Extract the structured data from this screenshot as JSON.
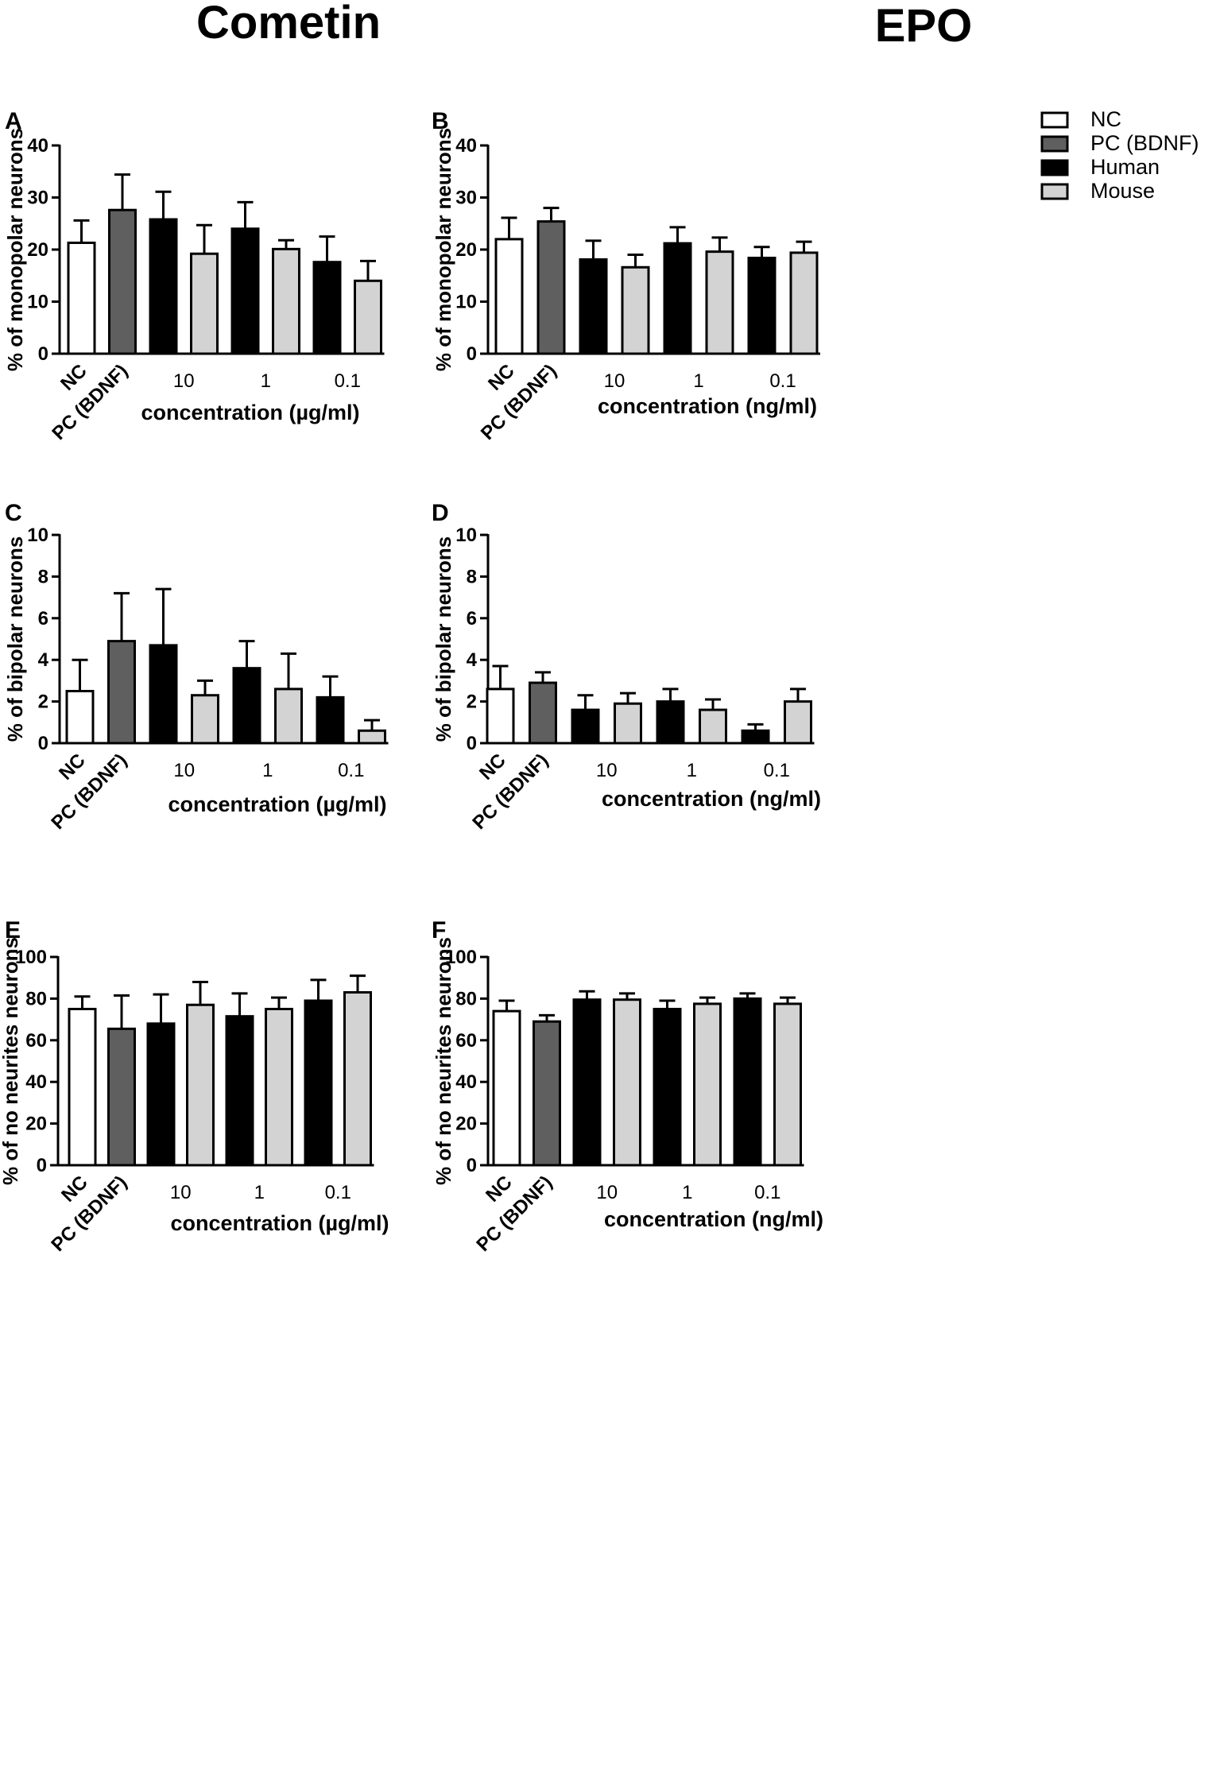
{
  "titles": {
    "left": "Cometin",
    "right": "EPO"
  },
  "legend": [
    {
      "label": "NC",
      "color": "#ffffff"
    },
    {
      "label": "PC (BDNF)",
      "color": "#5f5f5f"
    },
    {
      "label": "Human",
      "color": "#000000"
    },
    {
      "label": "Mouse",
      "color": "#d3d3d3"
    }
  ],
  "chart_data": [
    {
      "panel": "A",
      "type": "bar",
      "ylabel": "% of monopolar neurons",
      "xlabel": "concentration (µg/ml)",
      "ylim": [
        0,
        40
      ],
      "yticks": [
        0,
        10,
        20,
        30,
        40
      ],
      "control_labels": [
        "NC",
        "PC (BDNF)"
      ],
      "group_labels": [
        "10",
        "1",
        "0.1"
      ],
      "bars": [
        {
          "series": "NC",
          "value": 21.3,
          "error": 4.3
        },
        {
          "series": "PC (BDNF)",
          "value": 27.6,
          "error": 6.8
        },
        {
          "series": "Human",
          "group": "10",
          "value": 25.8,
          "error": 5.3
        },
        {
          "series": "Mouse",
          "group": "10",
          "value": 19.2,
          "error": 5.5
        },
        {
          "series": "Human",
          "group": "1",
          "value": 24.0,
          "error": 5.1
        },
        {
          "series": "Mouse",
          "group": "1",
          "value": 20.1,
          "error": 1.7
        },
        {
          "series": "Human",
          "group": "0.1",
          "value": 17.6,
          "error": 4.9
        },
        {
          "series": "Mouse",
          "group": "0.1",
          "value": 14.0,
          "error": 3.8
        }
      ]
    },
    {
      "panel": "B",
      "type": "bar",
      "ylabel": "% of monopolar neurons",
      "xlabel": "concentration (ng/ml)",
      "ylim": [
        0,
        40
      ],
      "yticks": [
        0,
        10,
        20,
        30,
        40
      ],
      "control_labels": [
        "NC",
        "PC (BDNF)"
      ],
      "group_labels": [
        "10",
        "1",
        "0.1"
      ],
      "bars": [
        {
          "series": "NC",
          "value": 22.0,
          "error": 4.1
        },
        {
          "series": "PC (BDNF)",
          "value": 25.4,
          "error": 2.6
        },
        {
          "series": "Human",
          "group": "10",
          "value": 18.1,
          "error": 3.6
        },
        {
          "series": "Mouse",
          "group": "10",
          "value": 16.6,
          "error": 2.4
        },
        {
          "series": "Human",
          "group": "1",
          "value": 21.2,
          "error": 3.1
        },
        {
          "series": "Mouse",
          "group": "1",
          "value": 19.6,
          "error": 2.7
        },
        {
          "series": "Human",
          "group": "0.1",
          "value": 18.4,
          "error": 2.1
        },
        {
          "series": "Mouse",
          "group": "0.1",
          "value": 19.4,
          "error": 2.1
        }
      ]
    },
    {
      "panel": "C",
      "type": "bar",
      "ylabel": "% of bipolar neurons",
      "xlabel": "concentration (µg/ml)",
      "ylim": [
        0,
        10
      ],
      "yticks": [
        0,
        2,
        4,
        6,
        8,
        10
      ],
      "control_labels": [
        "NC",
        "PC (BDNF)"
      ],
      "group_labels": [
        "10",
        "1",
        "0.1"
      ],
      "bars": [
        {
          "series": "NC",
          "value": 2.5,
          "error": 1.5
        },
        {
          "series": "PC (BDNF)",
          "value": 4.9,
          "error": 2.3
        },
        {
          "series": "Human",
          "group": "10",
          "value": 4.7,
          "error": 2.7
        },
        {
          "series": "Mouse",
          "group": "10",
          "value": 2.3,
          "error": 0.7
        },
        {
          "series": "Human",
          "group": "1",
          "value": 3.6,
          "error": 1.3
        },
        {
          "series": "Mouse",
          "group": "1",
          "value": 2.6,
          "error": 1.7
        },
        {
          "series": "Human",
          "group": "0.1",
          "value": 2.2,
          "error": 1.0
        },
        {
          "series": "Mouse",
          "group": "0.1",
          "value": 0.6,
          "error": 0.5
        }
      ]
    },
    {
      "panel": "D",
      "type": "bar",
      "ylabel": "% of bipolar neurons",
      "xlabel": "concentration (ng/ml)",
      "ylim": [
        0,
        10
      ],
      "yticks": [
        0,
        2,
        4,
        6,
        8,
        10
      ],
      "control_labels": [
        "NC",
        "PC (BDNF)"
      ],
      "group_labels": [
        "10",
        "1",
        "0.1"
      ],
      "bars": [
        {
          "series": "NC",
          "value": 2.6,
          "error": 1.1
        },
        {
          "series": "PC (BDNF)",
          "value": 2.9,
          "error": 0.5
        },
        {
          "series": "Human",
          "group": "10",
          "value": 1.6,
          "error": 0.7
        },
        {
          "series": "Mouse",
          "group": "10",
          "value": 1.9,
          "error": 0.5
        },
        {
          "series": "Human",
          "group": "1",
          "value": 2.0,
          "error": 0.6
        },
        {
          "series": "Mouse",
          "group": "1",
          "value": 1.6,
          "error": 0.5
        },
        {
          "series": "Human",
          "group": "0.1",
          "value": 0.6,
          "error": 0.3
        },
        {
          "series": "Mouse",
          "group": "0.1",
          "value": 2.0,
          "error": 0.6
        }
      ]
    },
    {
      "panel": "E",
      "type": "bar",
      "ylabel": "% of no neurites neurons",
      "xlabel": "concentration (µg/ml)",
      "ylim": [
        0,
        100
      ],
      "yticks": [
        0,
        20,
        40,
        60,
        80,
        100
      ],
      "control_labels": [
        "NC",
        "PC (BDNF)"
      ],
      "group_labels": [
        "10",
        "1",
        "0.1"
      ],
      "bars": [
        {
          "series": "NC",
          "value": 75,
          "error": 6
        },
        {
          "series": "PC (BDNF)",
          "value": 65.5,
          "error": 16
        },
        {
          "series": "Human",
          "group": "10",
          "value": 68,
          "error": 14
        },
        {
          "series": "Mouse",
          "group": "10",
          "value": 77,
          "error": 11
        },
        {
          "series": "Human",
          "group": "1",
          "value": 71.5,
          "error": 11
        },
        {
          "series": "Mouse",
          "group": "1",
          "value": 75,
          "error": 5.5
        },
        {
          "series": "Human",
          "group": "0.1",
          "value": 79,
          "error": 10
        },
        {
          "series": "Mouse",
          "group": "0.1",
          "value": 83,
          "error": 8
        }
      ]
    },
    {
      "panel": "F",
      "type": "bar",
      "ylabel": "% of no neurites neurons",
      "xlabel": "concentration (ng/ml)",
      "ylim": [
        0,
        100
      ],
      "yticks": [
        0,
        20,
        40,
        60,
        80,
        100
      ],
      "control_labels": [
        "NC",
        "PC (BDNF)"
      ],
      "group_labels": [
        "10",
        "1",
        "0.1"
      ],
      "bars": [
        {
          "series": "NC",
          "value": 74,
          "error": 5
        },
        {
          "series": "PC (BDNF)",
          "value": 69,
          "error": 3
        },
        {
          "series": "Human",
          "group": "10",
          "value": 79.5,
          "error": 4
        },
        {
          "series": "Mouse",
          "group": "10",
          "value": 79.5,
          "error": 3
        },
        {
          "series": "Human",
          "group": "1",
          "value": 75,
          "error": 4
        },
        {
          "series": "Mouse",
          "group": "1",
          "value": 77.5,
          "error": 3
        },
        {
          "series": "Human",
          "group": "0.1",
          "value": 80,
          "error": 2.5
        },
        {
          "series": "Mouse",
          "group": "0.1",
          "value": 77.5,
          "error": 3
        }
      ]
    }
  ]
}
